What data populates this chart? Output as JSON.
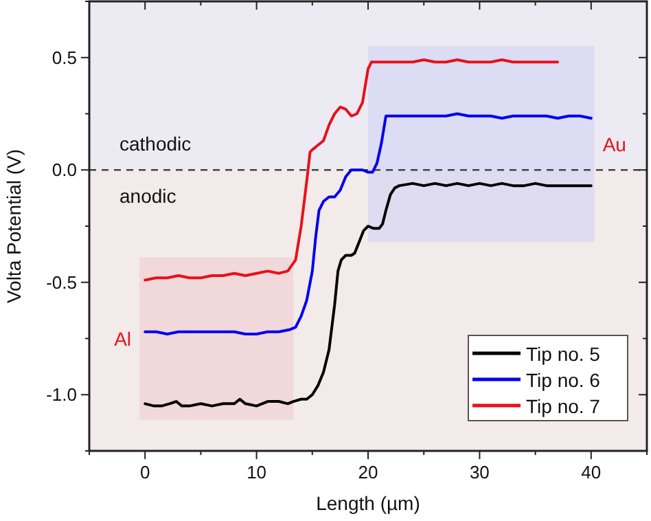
{
  "chart_data": {
    "type": "line",
    "xlabel": "Length (µm)",
    "ylabel": "Volta Potential (V)",
    "xlim": [
      -5,
      45
    ],
    "ylim": [
      -1.25,
      0.75
    ],
    "xticks": [
      {
        "value": -5,
        "label": null
      },
      0,
      {
        "value": 5,
        "label": null
      },
      10,
      {
        "value": 15,
        "label": null
      },
      20,
      {
        "value": 25,
        "label": null
      },
      30,
      {
        "value": 35,
        "label": null
      },
      40,
      {
        "value": 45,
        "label": null
      }
    ],
    "yticks": [
      {
        "value": -1.25,
        "label": null
      },
      {
        "value": -1,
        "label": "-1.0"
      },
      {
        "value": -0.75,
        "label": null
      },
      -0.5,
      {
        "value": -0.25,
        "label": null
      },
      {
        "value": 0,
        "label": "0.0"
      },
      {
        "value": 0.25,
        "label": null
      },
      0.5,
      {
        "value": 0.75,
        "label": null
      }
    ],
    "grid": false,
    "legend": "bottom right",
    "line_style": "solid",
    "marker": "none",
    "ref_lines": [
      {
        "axis": "y",
        "value": 0,
        "color": "#444444",
        "line_style": "dashed"
      }
    ],
    "bands": [
      {
        "axis": "y",
        "from": 0,
        "to": 0.75,
        "label": "cathodic",
        "color": "#ecebf3"
      },
      {
        "axis": "y",
        "from": -1.25,
        "to": 0,
        "label": "anodic",
        "color": "#f3eaea"
      },
      {
        "axis": "x",
        "from": -0.5,
        "to": 13.3,
        "label": "Al",
        "color": "#f0d2d4"
      },
      {
        "axis": "x",
        "from": 20,
        "to": 40.3,
        "label": "Au",
        "color": "#d6d6f4"
      }
    ],
    "series": [
      {
        "name": "Tip no. 5",
        "color": "#000000",
        "x": [
          0,
          0.8,
          1.5,
          2.2,
          2.8,
          3.3,
          4,
          5,
          6,
          7,
          8,
          8.5,
          9,
          10,
          11,
          12,
          12.8,
          13.3,
          14,
          14.5,
          15,
          15.5,
          16,
          16.5,
          17,
          17.3,
          17.6,
          18,
          18.5,
          18.8,
          19.2,
          19.6,
          20,
          20.5,
          21,
          21.3,
          21.6,
          22,
          22.4,
          22.8,
          24,
          25,
          26,
          27,
          28,
          29,
          30,
          31,
          32,
          33,
          34,
          35,
          36,
          37,
          38,
          39,
          40
        ],
        "values": [
          -1.04,
          -1.05,
          -1.05,
          -1.04,
          -1.03,
          -1.05,
          -1.05,
          -1.04,
          -1.05,
          -1.04,
          -1.04,
          -1.02,
          -1.04,
          -1.05,
          -1.03,
          -1.03,
          -1.04,
          -1.03,
          -1.02,
          -1.02,
          -1.0,
          -0.96,
          -0.9,
          -0.8,
          -0.6,
          -0.45,
          -0.4,
          -0.38,
          -0.38,
          -0.37,
          -0.32,
          -0.27,
          -0.25,
          -0.26,
          -0.26,
          -0.24,
          -0.18,
          -0.11,
          -0.08,
          -0.07,
          -0.06,
          -0.07,
          -0.06,
          -0.07,
          -0.06,
          -0.07,
          -0.06,
          -0.07,
          -0.06,
          -0.07,
          -0.07,
          -0.06,
          -0.07,
          -0.07,
          -0.07,
          -0.07,
          -0.07
        ]
      },
      {
        "name": "Tip no. 6",
        "color": "#0000ee",
        "x": [
          0,
          1,
          2,
          3,
          4,
          5,
          6,
          7,
          8,
          9,
          10,
          11,
          12,
          13,
          13.5,
          14,
          14.5,
          15,
          15.3,
          15.6,
          16,
          16.5,
          17,
          17.5,
          18,
          18.5,
          19,
          19.5,
          20,
          20.4,
          20.8,
          21.2,
          21.6,
          22,
          23,
          24,
          25,
          26,
          27,
          28,
          29,
          30,
          31,
          32,
          33,
          34,
          35,
          36,
          37,
          38,
          39,
          40
        ],
        "values": [
          -0.72,
          -0.72,
          -0.73,
          -0.72,
          -0.72,
          -0.72,
          -0.72,
          -0.72,
          -0.72,
          -0.73,
          -0.73,
          -0.72,
          -0.72,
          -0.71,
          -0.7,
          -0.65,
          -0.58,
          -0.45,
          -0.3,
          -0.18,
          -0.14,
          -0.12,
          -0.12,
          -0.09,
          -0.03,
          0.0,
          0.0,
          0.0,
          -0.01,
          -0.01,
          0.03,
          0.12,
          0.24,
          0.24,
          0.24,
          0.24,
          0.24,
          0.24,
          0.24,
          0.25,
          0.24,
          0.24,
          0.24,
          0.23,
          0.24,
          0.24,
          0.24,
          0.24,
          0.23,
          0.24,
          0.24,
          0.23
        ]
      },
      {
        "name": "Tip no. 7",
        "color": "#e8101c",
        "x": [
          0,
          1,
          2,
          3,
          4,
          5,
          6,
          7,
          8,
          9,
          10,
          11,
          12,
          12.8,
          13.5,
          14,
          14.5,
          14.8,
          15,
          15.5,
          16,
          16.5,
          17,
          17.5,
          18,
          18.5,
          19,
          19.5,
          20,
          20.3,
          20.6,
          21,
          22,
          23,
          24,
          25,
          26,
          27,
          28,
          29,
          30,
          31,
          32,
          33,
          34,
          35,
          36,
          37
        ],
        "values": [
          -0.49,
          -0.48,
          -0.48,
          -0.47,
          -0.48,
          -0.48,
          -0.47,
          -0.47,
          -0.46,
          -0.47,
          -0.46,
          -0.45,
          -0.46,
          -0.45,
          -0.4,
          -0.25,
          -0.05,
          0.08,
          0.09,
          0.11,
          0.13,
          0.2,
          0.25,
          0.28,
          0.27,
          0.24,
          0.25,
          0.3,
          0.45,
          0.48,
          0.48,
          0.48,
          0.48,
          0.48,
          0.48,
          0.49,
          0.48,
          0.48,
          0.49,
          0.48,
          0.48,
          0.48,
          0.49,
          0.48,
          0.48,
          0.48,
          0.48,
          0.48
        ]
      }
    ]
  }
}
